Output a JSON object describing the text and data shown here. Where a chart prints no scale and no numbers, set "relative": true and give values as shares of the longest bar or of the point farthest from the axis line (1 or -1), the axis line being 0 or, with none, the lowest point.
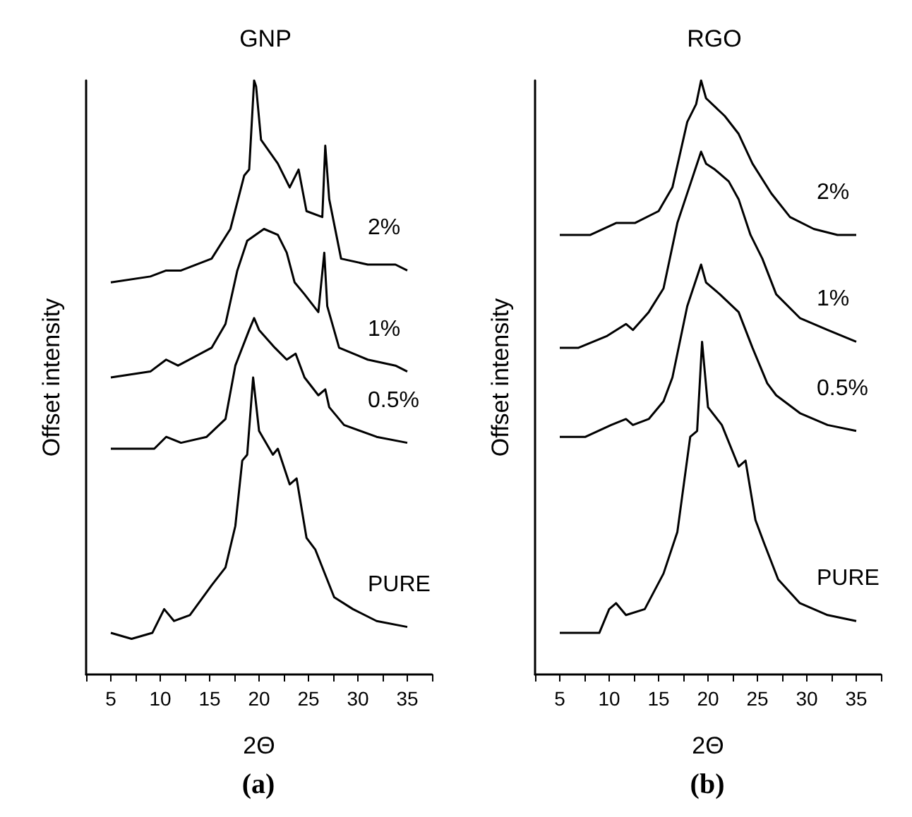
{
  "chart_data": [
    {
      "type": "line",
      "title": "GNP",
      "xlabel": "2Θ",
      "ylabel": "Offset intensity",
      "annotations": [
        "(a)"
      ],
      "relative": true,
      "legend": false,
      "grid": false,
      "marker": "none",
      "line_style": "solid",
      "tick_labels": "x",
      "xlim": [
        2.5,
        37.5
      ],
      "xticks": [
        {
          "value": 2.5,
          "label": null
        },
        5,
        {
          "value": 7.5,
          "label": null
        },
        10,
        {
          "value": 12.5,
          "label": null
        },
        15,
        {
          "value": 17.5,
          "label": null
        },
        20,
        {
          "value": 22.5,
          "label": null
        },
        25,
        {
          "value": 27.5,
          "label": null
        },
        30,
        {
          "value": 32.5,
          "label": null
        },
        35,
        {
          "value": 37.5,
          "label": null
        }
      ],
      "series": [
        {
          "name": "2%",
          "color": "#000000",
          "x": [
            5.0,
            9.0,
            10.6,
            12.1,
            15.2,
            17.1,
            18.5,
            19.0,
            19.5,
            19.7,
            20.2,
            21.9,
            23.1,
            24.0,
            24.8,
            26.4,
            26.7,
            27.1,
            28.3,
            31.0,
            33.8,
            35.0
          ],
          "values": [
            0.66,
            0.67,
            0.68,
            0.68,
            0.7,
            0.75,
            0.84,
            0.85,
            1.0,
            0.99,
            0.9,
            0.86,
            0.82,
            0.85,
            0.78,
            0.77,
            0.89,
            0.8,
            0.7,
            0.69,
            0.69,
            0.68
          ]
        },
        {
          "name": "1%",
          "color": "#000000",
          "x": [
            5.0,
            9.0,
            10.6,
            11.8,
            15.2,
            16.6,
            17.8,
            18.8,
            20.5,
            21.9,
            22.8,
            23.6,
            24.6,
            26.0,
            26.6,
            26.9,
            28.1,
            31.0,
            33.8,
            35.0
          ],
          "values": [
            0.5,
            0.51,
            0.53,
            0.52,
            0.55,
            0.59,
            0.68,
            0.73,
            0.75,
            0.74,
            0.71,
            0.66,
            0.64,
            0.61,
            0.71,
            0.62,
            0.55,
            0.53,
            0.52,
            0.51
          ]
        },
        {
          "name": "0.5%",
          "color": "#000000",
          "x": [
            5.0,
            9.4,
            10.6,
            12.1,
            14.7,
            16.6,
            17.6,
            19.0,
            19.5,
            20.0,
            21.6,
            22.8,
            23.7,
            24.6,
            26.0,
            26.7,
            27.1,
            28.6,
            31.9,
            35.0
          ],
          "values": [
            0.38,
            0.38,
            0.4,
            0.39,
            0.4,
            0.43,
            0.52,
            0.58,
            0.6,
            0.58,
            0.55,
            0.53,
            0.54,
            0.5,
            0.47,
            0.48,
            0.45,
            0.42,
            0.4,
            0.39
          ]
        },
        {
          "name": "PURE",
          "color": "#000000",
          "x": [
            5.0,
            7.1,
            9.2,
            10.4,
            11.4,
            13.0,
            15.2,
            16.6,
            17.6,
            18.3,
            18.8,
            19.4,
            20.0,
            21.4,
            21.9,
            23.1,
            23.8,
            24.8,
            25.7,
            27.6,
            29.5,
            31.9,
            35.0
          ],
          "values": [
            0.07,
            0.06,
            0.07,
            0.11,
            0.09,
            0.1,
            0.15,
            0.18,
            0.25,
            0.36,
            0.37,
            0.5,
            0.41,
            0.37,
            0.38,
            0.32,
            0.33,
            0.23,
            0.21,
            0.13,
            0.11,
            0.09,
            0.08
          ]
        }
      ]
    },
    {
      "type": "line",
      "title": "RGO",
      "xlabel": "2Θ",
      "ylabel": "Offset intensity",
      "annotations": [
        "(b)"
      ],
      "relative": true,
      "legend": false,
      "grid": false,
      "marker": "none",
      "line_style": "solid",
      "tick_labels": "x",
      "xlim": [
        2.5,
        37.5
      ],
      "xticks": [
        {
          "value": 2.5,
          "label": null
        },
        5,
        {
          "value": 7.5,
          "label": null
        },
        10,
        {
          "value": 12.5,
          "label": null
        },
        15,
        {
          "value": 17.5,
          "label": null
        },
        20,
        {
          "value": 22.5,
          "label": null
        },
        25,
        {
          "value": 27.5,
          "label": null
        },
        30,
        {
          "value": 32.5,
          "label": null
        },
        35,
        {
          "value": 37.5,
          "label": null
        }
      ],
      "series": [
        {
          "name": "2%",
          "color": "#000000",
          "x": [
            5.0,
            5.5,
            8.1,
            10.7,
            12.6,
            15.0,
            16.4,
            17.9,
            18.8,
            19.3,
            19.8,
            21.7,
            23.1,
            24.5,
            26.4,
            28.3,
            30.7,
            33.1,
            35.0
          ],
          "values": [
            0.74,
            0.74,
            0.74,
            0.76,
            0.76,
            0.78,
            0.82,
            0.93,
            0.96,
            1.0,
            0.97,
            0.94,
            0.91,
            0.86,
            0.81,
            0.77,
            0.75,
            0.74,
            0.74
          ]
        },
        {
          "name": "1%",
          "color": "#000000",
          "x": [
            5.0,
            6.9,
            9.8,
            11.7,
            12.4,
            14.0,
            15.5,
            16.9,
            18.3,
            19.3,
            19.8,
            20.7,
            22.1,
            23.1,
            24.3,
            25.5,
            26.9,
            29.3,
            32.1,
            35.0
          ],
          "values": [
            0.55,
            0.55,
            0.57,
            0.59,
            0.58,
            0.61,
            0.65,
            0.76,
            0.83,
            0.88,
            0.86,
            0.85,
            0.83,
            0.8,
            0.74,
            0.7,
            0.64,
            0.6,
            0.58,
            0.56
          ]
        },
        {
          "name": "0.5%",
          "color": "#000000",
          "x": [
            5.0,
            7.6,
            10.2,
            11.7,
            12.4,
            14.0,
            15.5,
            16.4,
            17.9,
            19.3,
            19.8,
            21.2,
            23.1,
            24.5,
            26.0,
            26.9,
            29.3,
            32.1,
            35.0
          ],
          "values": [
            0.4,
            0.4,
            0.42,
            0.43,
            0.42,
            0.43,
            0.46,
            0.5,
            0.62,
            0.69,
            0.66,
            0.64,
            0.61,
            0.55,
            0.49,
            0.47,
            0.44,
            0.42,
            0.41
          ]
        },
        {
          "name": "PURE",
          "color": "#000000",
          "x": [
            5.0,
            6.9,
            9.0,
            10.0,
            10.7,
            11.7,
            13.6,
            15.5,
            16.9,
            18.2,
            18.9,
            19.4,
            20.0,
            21.4,
            23.1,
            23.8,
            24.8,
            25.7,
            27.1,
            29.3,
            32.1,
            35.0
          ],
          "values": [
            0.07,
            0.07,
            0.07,
            0.11,
            0.12,
            0.1,
            0.11,
            0.17,
            0.24,
            0.4,
            0.41,
            0.56,
            0.45,
            0.42,
            0.35,
            0.36,
            0.26,
            0.22,
            0.16,
            0.12,
            0.1,
            0.09
          ]
        }
      ]
    }
  ]
}
